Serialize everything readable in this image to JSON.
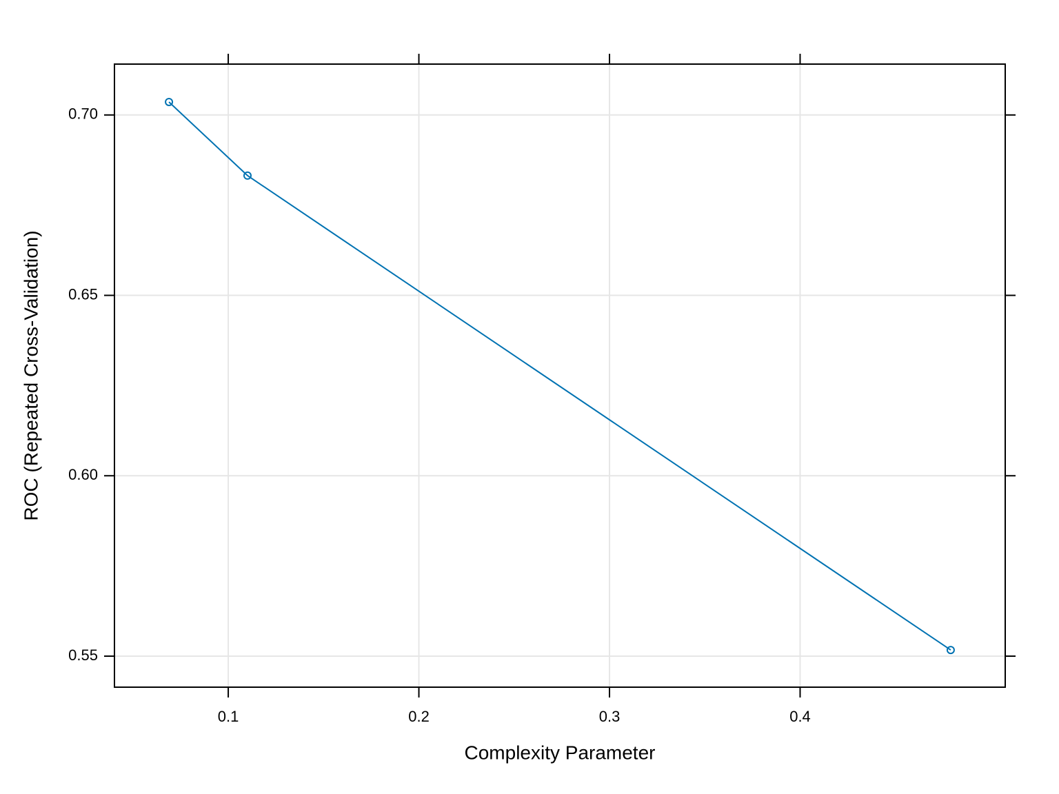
{
  "chart_data": {
    "type": "line",
    "x_label": "Complexity Parameter",
    "y_label": "ROC (Repeated Cross-Validation)",
    "series": [
      {
        "color": "#0072b2",
        "x": [
          0.0689,
          0.1101,
          0.479
        ],
        "values": [
          0.7036,
          0.6832,
          0.5517
        ]
      }
    ],
    "xlim": [
      0.0403,
      0.5076
    ],
    "ylim": [
      0.5414,
      0.7141
    ],
    "xticks": [
      0.1,
      0.2,
      0.3,
      0.4
    ],
    "yticks": [
      {
        "value": 0.55,
        "label": "0.55"
      },
      {
        "value": 0.6,
        "label": "0.60"
      },
      {
        "value": 0.65,
        "label": "0.65"
      },
      {
        "value": 0.7,
        "label": "0.70"
      }
    ],
    "grid": true
  }
}
